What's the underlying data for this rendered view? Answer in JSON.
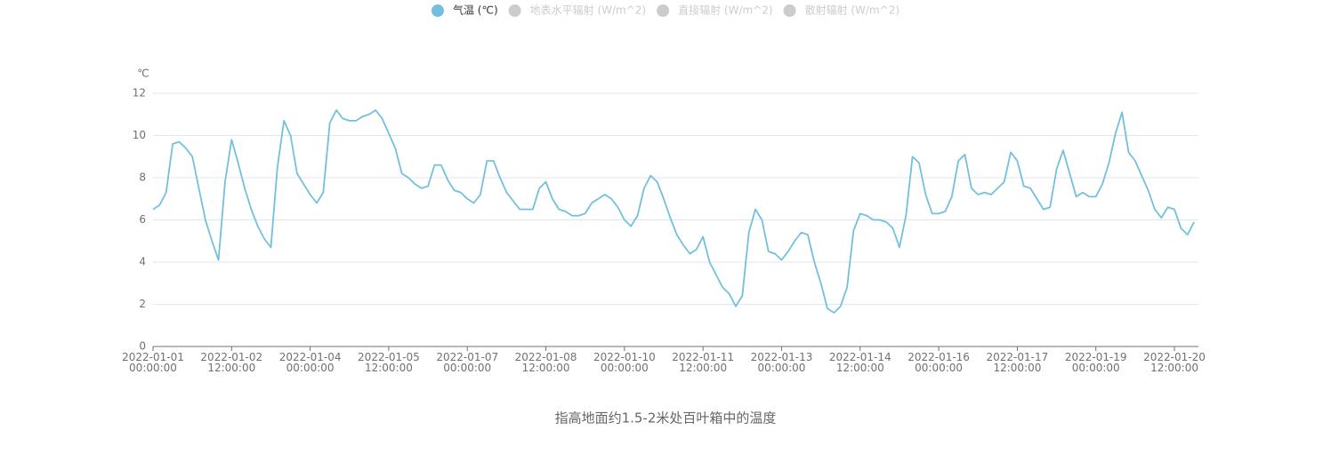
{
  "chart_data": {
    "type": "line",
    "caption": "指高地面约1.5-2米处百叶箱中的温度",
    "y_label": "℃",
    "grid": true,
    "legend": "top",
    "ylim": [
      0,
      12
    ],
    "yticks": [
      0,
      2,
      4,
      6,
      8,
      10,
      12
    ],
    "xlim": [
      "2022-01-01 00:00:00",
      "2022-01-20 23:00:00"
    ],
    "xticks": [
      "2022-01-01 00:00:00",
      "2022-01-02 12:00:00",
      "2022-01-04 00:00:00",
      "2022-01-05 12:00:00",
      "2022-01-07 00:00:00",
      "2022-01-08 12:00:00",
      "2022-01-10 00:00:00",
      "2022-01-11 12:00:00",
      "2022-01-13 00:00:00",
      "2022-01-14 12:00:00",
      "2022-01-16 00:00:00",
      "2022-01-17 12:00:00",
      "2022-01-19 00:00:00",
      "2022-01-20 12:00:00"
    ],
    "x": [
      "2022-01-01 00:00:00",
      "2022-01-01 03:00:00",
      "2022-01-01 06:00:00",
      "2022-01-01 09:00:00",
      "2022-01-01 12:00:00",
      "2022-01-01 15:00:00",
      "2022-01-01 18:00:00",
      "2022-01-01 21:00:00",
      "2022-01-02 00:00:00",
      "2022-01-02 03:00:00",
      "2022-01-02 06:00:00",
      "2022-01-02 09:00:00",
      "2022-01-02 12:00:00",
      "2022-01-02 15:00:00",
      "2022-01-02 18:00:00",
      "2022-01-02 21:00:00",
      "2022-01-03 00:00:00",
      "2022-01-03 03:00:00",
      "2022-01-03 06:00:00",
      "2022-01-03 09:00:00",
      "2022-01-03 12:00:00",
      "2022-01-03 15:00:00",
      "2022-01-03 18:00:00",
      "2022-01-03 21:00:00",
      "2022-01-04 00:00:00",
      "2022-01-04 03:00:00",
      "2022-01-04 06:00:00",
      "2022-01-04 09:00:00",
      "2022-01-04 12:00:00",
      "2022-01-04 15:00:00",
      "2022-01-04 18:00:00",
      "2022-01-04 21:00:00",
      "2022-01-05 00:00:00",
      "2022-01-05 03:00:00",
      "2022-01-05 06:00:00",
      "2022-01-05 09:00:00",
      "2022-01-05 12:00:00",
      "2022-01-05 15:00:00",
      "2022-01-05 18:00:00",
      "2022-01-05 21:00:00",
      "2022-01-06 00:00:00",
      "2022-01-06 03:00:00",
      "2022-01-06 06:00:00",
      "2022-01-06 09:00:00",
      "2022-01-06 12:00:00",
      "2022-01-06 15:00:00",
      "2022-01-06 18:00:00",
      "2022-01-06 21:00:00",
      "2022-01-07 00:00:00",
      "2022-01-07 03:00:00",
      "2022-01-07 06:00:00",
      "2022-01-07 09:00:00",
      "2022-01-07 12:00:00",
      "2022-01-07 15:00:00",
      "2022-01-07 18:00:00",
      "2022-01-07 21:00:00",
      "2022-01-08 00:00:00",
      "2022-01-08 03:00:00",
      "2022-01-08 06:00:00",
      "2022-01-08 09:00:00",
      "2022-01-08 12:00:00",
      "2022-01-08 15:00:00",
      "2022-01-08 18:00:00",
      "2022-01-08 21:00:00",
      "2022-01-09 00:00:00",
      "2022-01-09 03:00:00",
      "2022-01-09 06:00:00",
      "2022-01-09 09:00:00",
      "2022-01-09 12:00:00",
      "2022-01-09 15:00:00",
      "2022-01-09 18:00:00",
      "2022-01-09 21:00:00",
      "2022-01-10 00:00:00",
      "2022-01-10 03:00:00",
      "2022-01-10 06:00:00",
      "2022-01-10 09:00:00",
      "2022-01-10 12:00:00",
      "2022-01-10 15:00:00",
      "2022-01-10 18:00:00",
      "2022-01-10 21:00:00",
      "2022-01-11 00:00:00",
      "2022-01-11 03:00:00",
      "2022-01-11 06:00:00",
      "2022-01-11 09:00:00",
      "2022-01-11 12:00:00",
      "2022-01-11 15:00:00",
      "2022-01-11 18:00:00",
      "2022-01-11 21:00:00",
      "2022-01-12 00:00:00",
      "2022-01-12 03:00:00",
      "2022-01-12 06:00:00",
      "2022-01-12 09:00:00",
      "2022-01-12 12:00:00",
      "2022-01-12 15:00:00",
      "2022-01-12 18:00:00",
      "2022-01-12 21:00:00",
      "2022-01-13 00:00:00",
      "2022-01-13 03:00:00",
      "2022-01-13 06:00:00",
      "2022-01-13 09:00:00",
      "2022-01-13 12:00:00",
      "2022-01-13 15:00:00",
      "2022-01-13 18:00:00",
      "2022-01-13 21:00:00",
      "2022-01-14 00:00:00",
      "2022-01-14 03:00:00",
      "2022-01-14 06:00:00",
      "2022-01-14 09:00:00",
      "2022-01-14 12:00:00",
      "2022-01-14 15:00:00",
      "2022-01-14 18:00:00",
      "2022-01-14 21:00:00",
      "2022-01-15 00:00:00",
      "2022-01-15 03:00:00",
      "2022-01-15 06:00:00",
      "2022-01-15 09:00:00",
      "2022-01-15 12:00:00",
      "2022-01-15 15:00:00",
      "2022-01-15 18:00:00",
      "2022-01-15 21:00:00",
      "2022-01-16 00:00:00",
      "2022-01-16 03:00:00",
      "2022-01-16 06:00:00",
      "2022-01-16 09:00:00",
      "2022-01-16 12:00:00",
      "2022-01-16 15:00:00",
      "2022-01-16 18:00:00",
      "2022-01-16 21:00:00",
      "2022-01-17 00:00:00",
      "2022-01-17 03:00:00",
      "2022-01-17 06:00:00",
      "2022-01-17 09:00:00",
      "2022-01-17 12:00:00",
      "2022-01-17 15:00:00",
      "2022-01-17 18:00:00",
      "2022-01-17 21:00:00",
      "2022-01-18 00:00:00",
      "2022-01-18 03:00:00",
      "2022-01-18 06:00:00",
      "2022-01-18 09:00:00",
      "2022-01-18 12:00:00",
      "2022-01-18 15:00:00",
      "2022-01-18 18:00:00",
      "2022-01-18 21:00:00",
      "2022-01-19 00:00:00",
      "2022-01-19 03:00:00",
      "2022-01-19 06:00:00",
      "2022-01-19 09:00:00",
      "2022-01-19 12:00:00",
      "2022-01-19 15:00:00",
      "2022-01-19 18:00:00",
      "2022-01-19 21:00:00",
      "2022-01-20 00:00:00",
      "2022-01-20 03:00:00",
      "2022-01-20 06:00:00",
      "2022-01-20 09:00:00",
      "2022-01-20 12:00:00",
      "2022-01-20 15:00:00",
      "2022-01-20 18:00:00",
      "2022-01-20 21:00:00"
    ],
    "series": [
      {
        "name": "气温 (℃)",
        "color": "#73c0de",
        "visible": true,
        "values": [
          6.5,
          6.7,
          7.3,
          9.6,
          9.7,
          9.4,
          9.0,
          7.5,
          6.0,
          5.0,
          4.1,
          7.8,
          9.8,
          8.7,
          7.5,
          6.5,
          5.7,
          5.1,
          4.7,
          8.5,
          10.7,
          10.0,
          8.2,
          7.7,
          7.2,
          6.8,
          7.3,
          10.6,
          11.2,
          10.8,
          10.7,
          10.7,
          10.9,
          11.0,
          11.2,
          10.8,
          10.1,
          9.4,
          8.2,
          8.0,
          7.7,
          7.5,
          7.6,
          8.6,
          8.6,
          7.9,
          7.4,
          7.3,
          7.0,
          6.8,
          7.2,
          8.8,
          8.8,
          8.0,
          7.3,
          6.9,
          6.5,
          6.5,
          6.5,
          7.5,
          7.8,
          7.0,
          6.5,
          6.4,
          6.2,
          6.2,
          6.3,
          6.8,
          7.0,
          7.2,
          7.0,
          6.6,
          6.0,
          5.7,
          6.2,
          7.5,
          8.1,
          7.8,
          7.0,
          6.1,
          5.3,
          4.8,
          4.4,
          4.6,
          5.2,
          4.0,
          3.4,
          2.8,
          2.5,
          1.9,
          2.4,
          5.4,
          6.5,
          6.0,
          4.5,
          4.4,
          4.1,
          4.5,
          5.0,
          5.4,
          5.3,
          4.0,
          3.0,
          1.8,
          1.6,
          1.9,
          2.8,
          5.5,
          6.3,
          6.2,
          6.0,
          6.0,
          5.9,
          5.6,
          4.7,
          6.2,
          9.0,
          8.7,
          7.2,
          6.3,
          6.3,
          6.4,
          7.1,
          8.8,
          9.1,
          7.5,
          7.2,
          7.3,
          7.2,
          7.5,
          7.8,
          9.2,
          8.8,
          7.6,
          7.5,
          7.0,
          6.5,
          6.6,
          8.4,
          9.3,
          8.2,
          7.1,
          7.3,
          7.1,
          7.1,
          7.7,
          8.7,
          10.1,
          11.1,
          9.2,
          8.8,
          8.1,
          7.4,
          6.5,
          6.1,
          6.6,
          6.5,
          5.6,
          5.3,
          5.9
        ]
      },
      {
        "name": "地表水平辐射 (W/m^2)",
        "visible": false
      },
      {
        "name": "直接辐射 (W/m^2)",
        "visible": false
      },
      {
        "name": "散射辐射 (W/m^2)",
        "visible": false
      }
    ]
  }
}
